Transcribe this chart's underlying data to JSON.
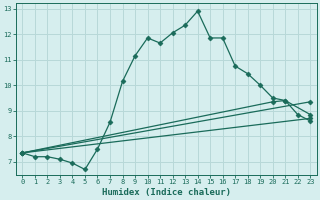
{
  "xlabel": "Humidex (Indice chaleur)",
  "xlim": [
    -0.5,
    23.5
  ],
  "ylim": [
    6.5,
    13.2
  ],
  "xticks": [
    0,
    1,
    2,
    3,
    4,
    5,
    6,
    7,
    8,
    9,
    10,
    11,
    12,
    13,
    14,
    15,
    16,
    17,
    18,
    19,
    20,
    21,
    22,
    23
  ],
  "yticks": [
    7,
    8,
    9,
    10,
    11,
    12,
    13
  ],
  "bg_color": "#d6eeee",
  "line_color": "#1a6b5a",
  "grid_color": "#b8d8d8",
  "line1_x": [
    0,
    1,
    2,
    3,
    4,
    5,
    6,
    7,
    8,
    9,
    10,
    11,
    12,
    13,
    14,
    15,
    16,
    17,
    18,
    19,
    20,
    21,
    22,
    23
  ],
  "line1_y": [
    7.35,
    7.2,
    7.2,
    7.1,
    6.95,
    6.7,
    7.5,
    8.55,
    10.15,
    11.15,
    11.85,
    11.65,
    12.05,
    12.35,
    12.9,
    11.85,
    11.85,
    10.75,
    10.45,
    10.0,
    9.5,
    9.4,
    8.85,
    8.6
  ],
  "line2_x": [
    0,
    23
  ],
  "line2_y": [
    7.35,
    9.35
  ],
  "line3_x": [
    0,
    23
  ],
  "line3_y": [
    7.35,
    8.7
  ],
  "line4_x": [
    0,
    20,
    21,
    23
  ],
  "line4_y": [
    7.35,
    9.35,
    9.4,
    8.85
  ]
}
